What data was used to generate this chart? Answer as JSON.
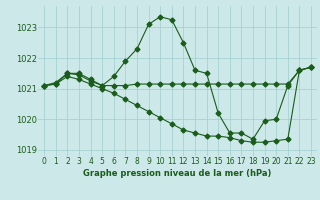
{
  "xlabel": "Graphe pression niveau de la mer (hPa)",
  "hours": [
    0,
    1,
    2,
    3,
    4,
    5,
    6,
    7,
    8,
    9,
    10,
    11,
    12,
    13,
    14,
    15,
    16,
    17,
    18,
    19,
    20,
    21,
    22,
    23
  ],
  "series": [
    [
      1021.1,
      1021.2,
      1021.5,
      1021.5,
      1021.3,
      1021.1,
      1021.4,
      1021.9,
      1022.3,
      1023.1,
      1023.35,
      1023.25,
      1022.5,
      1021.6,
      1021.5,
      1020.2,
      1019.55,
      1019.55,
      1019.35,
      1019.95,
      1020.0,
      1021.1,
      1021.6,
      1021.7
    ],
    [
      1021.1,
      1021.15,
      1021.5,
      1021.45,
      1021.25,
      1021.1,
      1021.1,
      1021.1,
      1021.15,
      1021.15,
      1021.15,
      1021.15,
      1021.15,
      1021.15,
      1021.15,
      1021.15,
      1021.15,
      1021.15,
      1021.15,
      1021.15,
      1021.15,
      1021.15,
      1021.6,
      1021.7
    ],
    [
      1021.1,
      1021.15,
      1021.4,
      1021.3,
      1021.15,
      1021.0,
      1020.85,
      1020.65,
      1020.45,
      1020.25,
      1020.05,
      1019.85,
      1019.65,
      1019.55,
      1019.45,
      1019.45,
      1019.4,
      1019.3,
      1019.25,
      1019.25,
      1019.3,
      1019.35,
      1021.6,
      1021.7
    ]
  ],
  "bg_color": "#cce8e8",
  "plot_bg": "#cce8e8",
  "line_color": "#1a5c1a",
  "grid_color": "#9fcfcf",
  "text_color": "#1a5c1a",
  "ylim": [
    1018.8,
    1023.7
  ],
  "yticks": [
    1019,
    1020,
    1021,
    1022,
    1023
  ],
  "xticks": [
    0,
    1,
    2,
    3,
    4,
    5,
    6,
    7,
    8,
    9,
    10,
    11,
    12,
    13,
    14,
    15,
    16,
    17,
    18,
    19,
    20,
    21,
    22,
    23
  ],
  "xlabel_fontsize": 6.0,
  "tick_fontsize": 5.5,
  "ytick_fontsize": 6.0
}
